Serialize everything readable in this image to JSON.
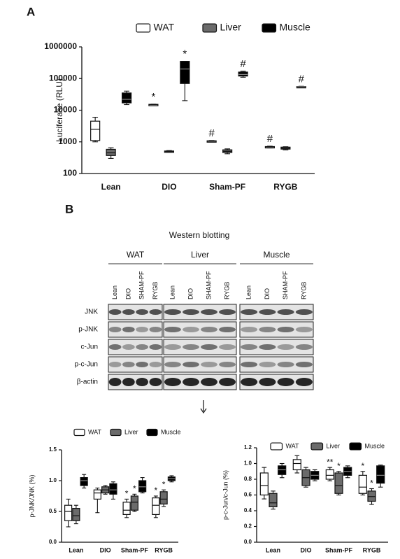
{
  "panel_labels": [
    "A",
    "B"
  ],
  "blot": {
    "title": "Western blotting",
    "groups": [
      "WAT",
      "Liver",
      "Muscle"
    ],
    "lanes": [
      "Lean",
      "DIO",
      "SHAM-PF",
      "RYGB"
    ],
    "rows": [
      "JNK",
      "p-JNK",
      "c-Jun",
      "p-c-Jun",
      "β-actin"
    ]
  },
  "chart_data": [
    {
      "type": "box",
      "ylabel": "Luciferase (RLU)",
      "log_scale": true,
      "legend": "top",
      "categories": [
        "Lean",
        "DIO",
        "Sham-PF",
        "RYGB"
      ],
      "ylim": [
        100,
        1000000
      ],
      "yticks": [
        100,
        1000,
        10000,
        100000,
        1000000
      ],
      "series": [
        {
          "name": "WAT",
          "color": "#ffffff",
          "values": [
            {
              "min": 1000,
              "q1": 1100,
              "median": 2500,
              "q3": 4500,
              "max": 6000
            },
            {
              "min": 14500,
              "q1": 14800,
              "median": 15000,
              "q3": 15300,
              "max": 15500
            },
            {
              "min": 1000,
              "q1": 1020,
              "median": 1050,
              "q3": 1080,
              "max": 1100
            },
            {
              "min": 640,
              "q1": 660,
              "median": 690,
              "q3": 710,
              "max": 730
            }
          ],
          "annotations": [
            null,
            "*",
            "#",
            "#"
          ]
        },
        {
          "name": "Liver",
          "color": "#6b6b6b",
          "values": [
            {
              "min": 300,
              "q1": 370,
              "median": 450,
              "q3": 580,
              "max": 650
            },
            {
              "min": 470,
              "q1": 485,
              "median": 500,
              "q3": 515,
              "max": 530
            },
            {
              "min": 420,
              "q1": 460,
              "median": 500,
              "q3": 560,
              "max": 600
            },
            {
              "min": 560,
              "q1": 590,
              "median": 630,
              "q3": 680,
              "max": 700
            }
          ],
          "annotations": [
            null,
            null,
            null,
            null
          ]
        },
        {
          "name": "Muscle",
          "color": "#000000",
          "values": [
            {
              "min": 15000,
              "q1": 17000,
              "median": 22000,
              "q3": 35000,
              "max": 40000
            },
            {
              "min": 20000,
              "q1": 70000,
              "median": 200000,
              "q3": 350000,
              "max": 350000
            },
            {
              "min": 110000,
              "q1": 120000,
              "median": 135000,
              "q3": 160000,
              "max": 170000
            },
            {
              "min": 53000,
              "q1": 54000,
              "median": 55000,
              "q3": 56000,
              "max": 57000
            }
          ],
          "annotations": [
            null,
            "*",
            "#",
            "#"
          ]
        }
      ]
    },
    {
      "type": "box",
      "ylabel": "p-JNK/JNK (%)",
      "legend": "top",
      "categories": [
        "Lean",
        "DIO",
        "Sham-PF",
        "RYGB"
      ],
      "ylim": [
        0,
        1.5
      ],
      "yticks": [
        {
          "value": 0,
          "label": "0.0"
        },
        0.5,
        {
          "value": 1,
          "label": "1.0"
        },
        1.5
      ],
      "series": [
        {
          "name": "WAT",
          "color": "#ffffff",
          "values": [
            {
              "min": 0.25,
              "q1": 0.35,
              "median": 0.5,
              "q3": 0.6,
              "max": 0.7
            },
            {
              "min": 0.48,
              "q1": 0.7,
              "median": 0.8,
              "q3": 0.85,
              "max": 0.88
            },
            {
              "min": 0.4,
              "q1": 0.45,
              "median": 0.52,
              "q3": 0.65,
              "max": 0.7
            },
            {
              "min": 0.4,
              "q1": 0.45,
              "median": 0.6,
              "q3": 0.72,
              "max": 0.75
            }
          ],
          "annotations": [
            null,
            null,
            "*",
            "*"
          ]
        },
        {
          "name": "Liver",
          "color": "#6b6b6b",
          "values": [
            {
              "min": 0.3,
              "q1": 0.35,
              "median": 0.43,
              "q3": 0.55,
              "max": 0.6
            },
            {
              "min": 0.78,
              "q1": 0.8,
              "median": 0.85,
              "q3": 0.9,
              "max": 0.92
            },
            {
              "min": 0.5,
              "q1": 0.52,
              "median": 0.65,
              "q3": 0.75,
              "max": 0.78
            },
            {
              "min": 0.58,
              "q1": 0.62,
              "median": 0.7,
              "q3": 0.82,
              "max": 0.85
            }
          ],
          "annotations": [
            null,
            null,
            "*",
            "*"
          ]
        },
        {
          "name": "Muscle",
          "color": "#000000",
          "values": [
            {
              "min": 0.88,
              "q1": 0.92,
              "median": 1.0,
              "q3": 1.05,
              "max": 1.1
            },
            {
              "min": 0.7,
              "q1": 0.78,
              "median": 0.85,
              "q3": 0.95,
              "max": 0.98
            },
            {
              "min": 0.8,
              "q1": 0.82,
              "median": 0.9,
              "q3": 1.0,
              "max": 1.05
            },
            {
              "min": 0.98,
              "q1": 1.0,
              "median": 1.03,
              "q3": 1.06,
              "max": 1.08
            }
          ],
          "annotations": [
            null,
            null,
            null,
            null
          ]
        }
      ]
    },
    {
      "type": "box",
      "ylabel": "p-c-Jun/c-Jun (%)",
      "legend": "top",
      "categories": [
        "Lean",
        "DIO",
        "Sham-PF",
        "RYGB"
      ],
      "ylim": [
        0,
        1.2
      ],
      "yticks": [
        {
          "value": 0,
          "label": "0.0"
        },
        0.2,
        0.4,
        0.6,
        0.8,
        {
          "value": 1,
          "label": "1.0"
        },
        1.2
      ],
      "series": [
        {
          "name": "WAT",
          "color": "#ffffff",
          "values": [
            {
              "min": 0.55,
              "q1": 0.6,
              "median": 0.72,
              "q3": 0.88,
              "max": 0.95
            },
            {
              "min": 0.88,
              "q1": 0.92,
              "median": 1.0,
              "q3": 1.05,
              "max": 1.1
            },
            {
              "min": 0.78,
              "q1": 0.8,
              "median": 0.85,
              "q3": 0.92,
              "max": 0.95
            },
            {
              "min": 0.6,
              "q1": 0.62,
              "median": 0.7,
              "q3": 0.85,
              "max": 0.9
            }
          ],
          "annotations": [
            null,
            null,
            "**",
            "*"
          ]
        },
        {
          "name": "Liver",
          "color": "#6b6b6b",
          "values": [
            {
              "min": 0.42,
              "q1": 0.45,
              "median": 0.5,
              "q3": 0.62,
              "max": 0.65
            },
            {
              "min": 0.7,
              "q1": 0.72,
              "median": 0.82,
              "q3": 0.92,
              "max": 0.95
            },
            {
              "min": 0.6,
              "q1": 0.62,
              "median": 0.72,
              "q3": 0.88,
              "max": 0.9
            },
            {
              "min": 0.48,
              "q1": 0.52,
              "median": 0.58,
              "q3": 0.65,
              "max": 0.68
            }
          ],
          "annotations": [
            null,
            null,
            "*",
            "*"
          ]
        },
        {
          "name": "Muscle",
          "color": "#000000",
          "values": [
            {
              "min": 0.82,
              "q1": 0.86,
              "median": 0.92,
              "q3": 0.97,
              "max": 1.0
            },
            {
              "min": 0.78,
              "q1": 0.8,
              "median": 0.85,
              "q3": 0.9,
              "max": 0.92
            },
            {
              "min": 0.82,
              "q1": 0.85,
              "median": 0.9,
              "q3": 0.95,
              "max": 0.97
            },
            {
              "min": 0.7,
              "q1": 0.75,
              "median": 0.85,
              "q3": 0.97,
              "max": 0.98
            }
          ],
          "annotations": [
            null,
            null,
            null,
            null
          ]
        }
      ]
    }
  ]
}
